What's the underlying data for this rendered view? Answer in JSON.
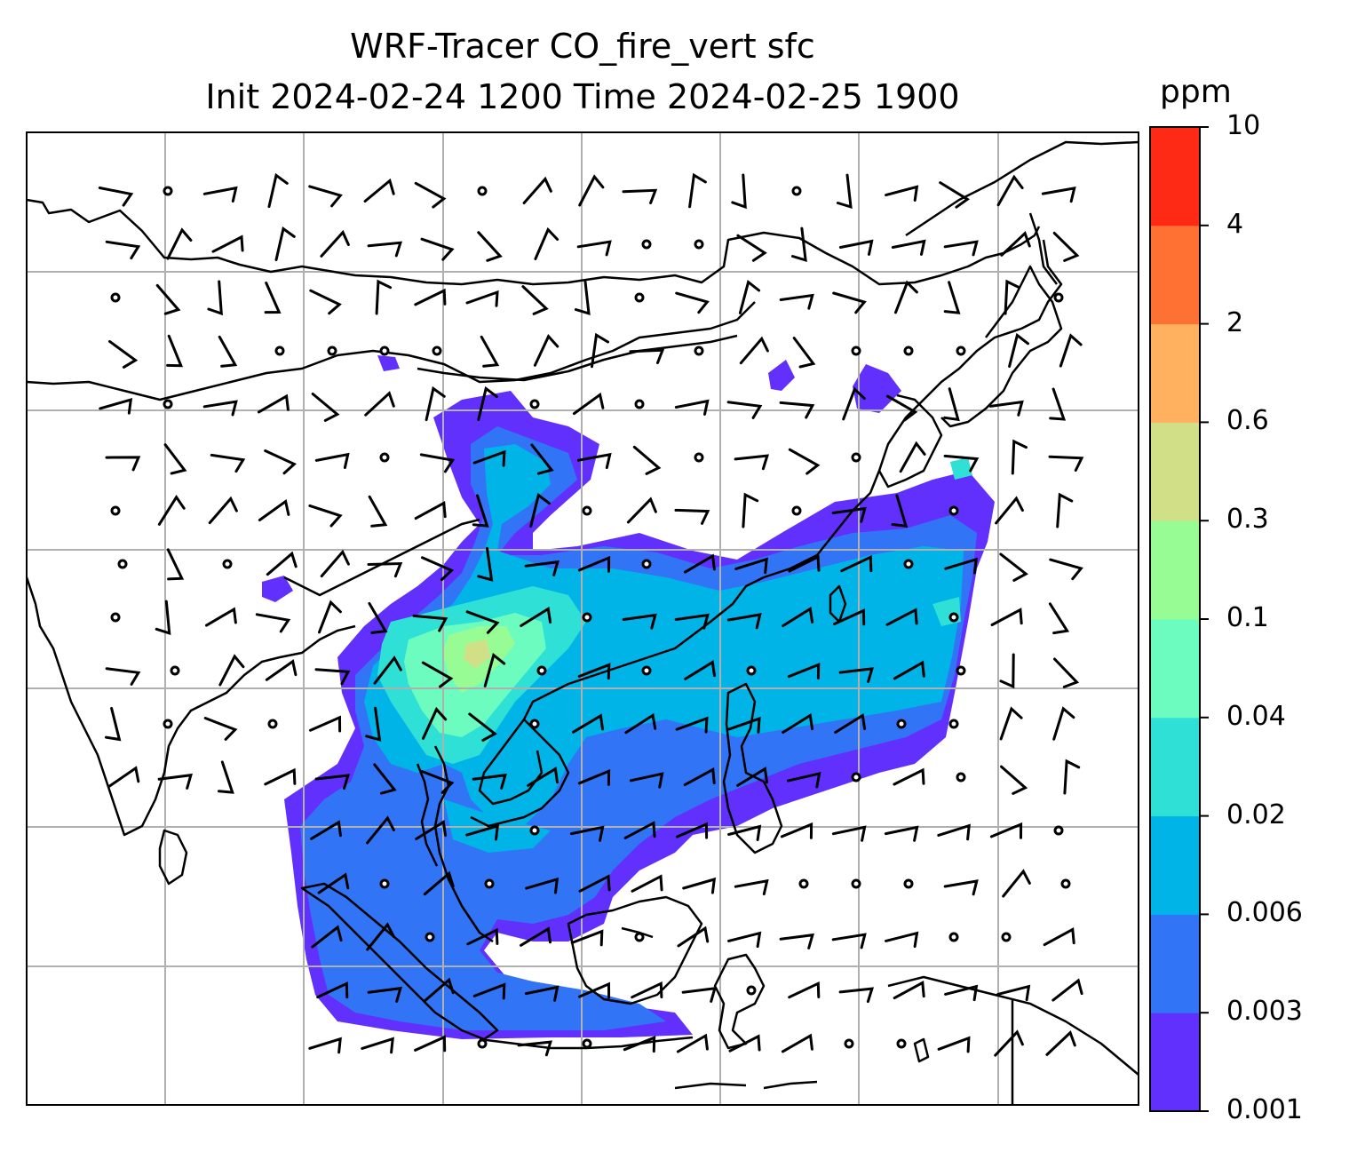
{
  "title": {
    "line1": "WRF-Tracer CO_fire_vert sfc",
    "line2": "Init 2024-02-24 1200 Time 2024-02-25 1900"
  },
  "colorbar": {
    "unit": "ppm",
    "levels": [
      {
        "label": "0.001",
        "color": "#6230fd"
      },
      {
        "label": "0.003",
        "color": "#3274f6"
      },
      {
        "label": "0.006",
        "color": "#00b4e8"
      },
      {
        "label": "0.02",
        "color": "#2fe0d6"
      },
      {
        "label": "0.04",
        "color": "#6cfcc0"
      },
      {
        "label": "0.1",
        "color": "#98fc94"
      },
      {
        "label": "0.3",
        "color": "#d1df86"
      },
      {
        "label": "0.6",
        "color": "#ffb160"
      },
      {
        "label": "2",
        "color": "#ff7033"
      },
      {
        "label": "4",
        "color": "#ff2a16"
      },
      {
        "label": "10",
        "color": null
      }
    ]
  },
  "colors": {
    "coastline": "#000000",
    "gridline": "#b0b0b0",
    "frame": "#000000"
  }
}
